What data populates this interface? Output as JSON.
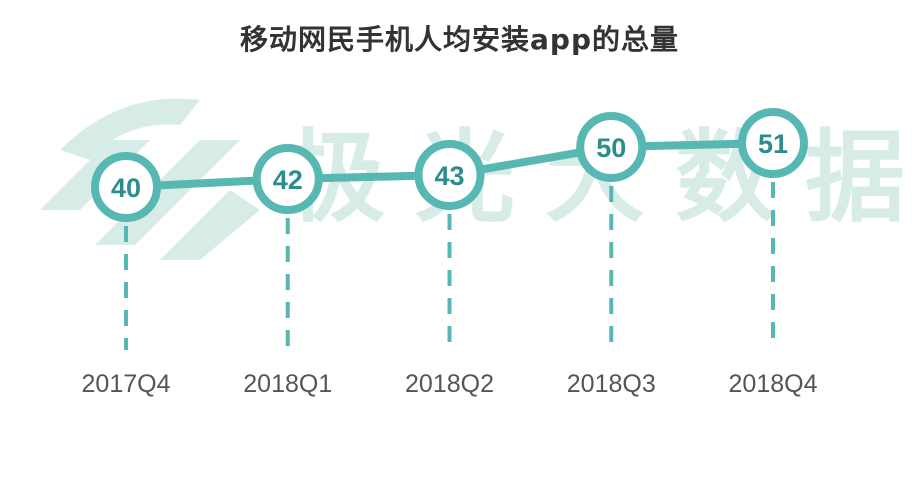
{
  "title": "移动网民手机人均安装app的总量",
  "watermark": {
    "text": "极光大数据"
  },
  "colors": {
    "line": "#57b8b3",
    "label": "#2e8c8c",
    "watermark": "#d7ece7",
    "tick": "#555555"
  },
  "chart_data": {
    "type": "line",
    "title": "移动网民手机人均安装app的总量",
    "categories": [
      "2017Q4",
      "2018Q1",
      "2018Q2",
      "2018Q3",
      "2018Q4"
    ],
    "values": [
      40,
      42,
      43,
      50,
      51
    ],
    "grid": false,
    "legend": "none"
  }
}
